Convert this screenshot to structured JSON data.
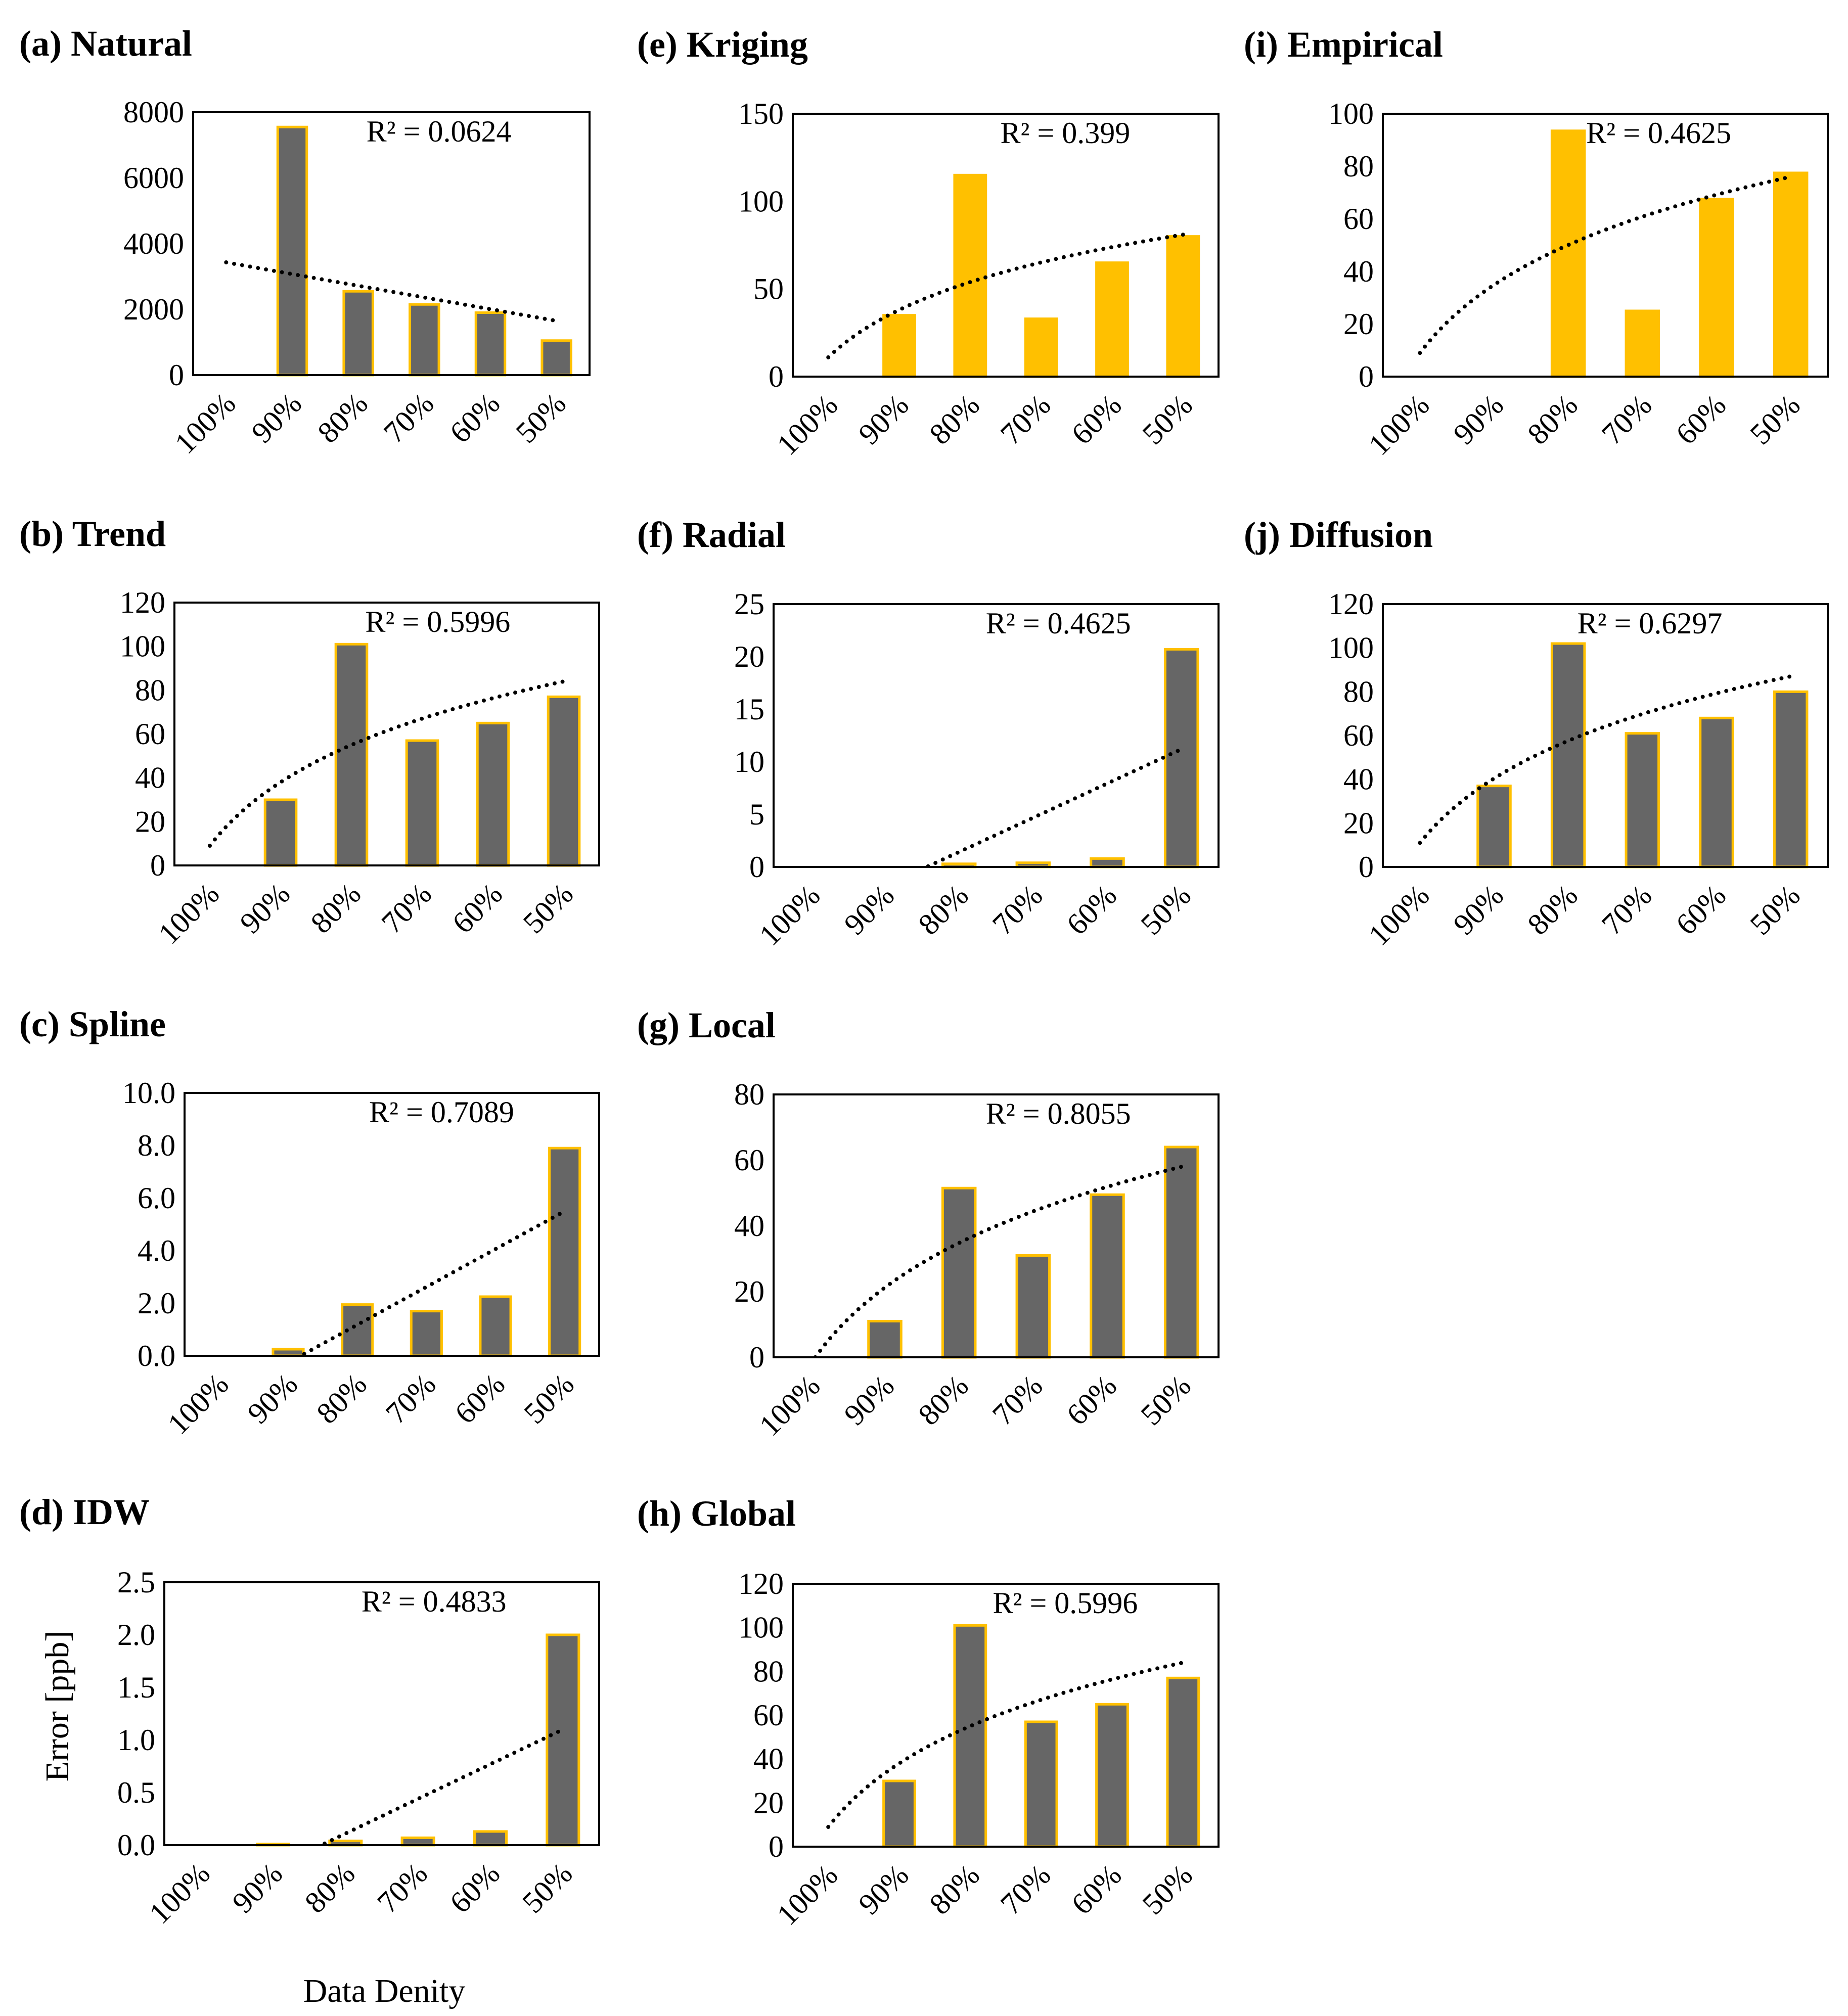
{
  "figure": {
    "ylabel": "Error [ppb]",
    "xlabel": "Data Denity"
  },
  "colors": {
    "gray_bar": "#666666",
    "gold_bar": "#FFC000",
    "bar_edge": "#FFC000",
    "trendline": "#000000",
    "frame": "#000000"
  },
  "chart_data": [
    {
      "id": "a",
      "title": "(a) Natural",
      "type": "bar",
      "categories": [
        "100%",
        "90%",
        "80%",
        "70%",
        "60%",
        "50%"
      ],
      "values": [
        0,
        7550,
        2550,
        2150,
        1900,
        1050
      ],
      "ylim": [
        0,
        8000
      ],
      "yticks": [
        0,
        2000,
        4000,
        6000,
        8000
      ],
      "ytick_labels": [
        "0",
        "2000",
        "4000",
        "6000",
        "8000"
      ],
      "bar_color": "gray",
      "trend": "linear",
      "trend_start": 3430,
      "trend_end": 1650,
      "r2_label": "R² = 0.0624"
    },
    {
      "id": "b",
      "title": "(b) Trend",
      "type": "bar",
      "categories": [
        "100%",
        "90%",
        "80%",
        "70%",
        "60%",
        "50%"
      ],
      "values": [
        0,
        30,
        101,
        57,
        65,
        77
      ],
      "ylim": [
        0,
        120
      ],
      "yticks": [
        0,
        20,
        40,
        60,
        80,
        100,
        120
      ],
      "ytick_labels": [
        "0",
        "20",
        "40",
        "60",
        "80",
        "100",
        "120"
      ],
      "bar_color": "gray",
      "trend": "log",
      "trend_start": 9,
      "trend_end": 84,
      "r2_label": "R² = 0.5996"
    },
    {
      "id": "c",
      "title": "(c) Spline",
      "type": "bar",
      "categories": [
        "100%",
        "90%",
        "80%",
        "70%",
        "60%",
        "50%"
      ],
      "values": [
        0,
        0.25,
        1.95,
        1.7,
        2.25,
        7.9
      ],
      "ylim": [
        0,
        10
      ],
      "yticks": [
        0,
        2,
        4,
        6,
        8,
        10
      ],
      "ytick_labels": [
        "0.0",
        "2.0",
        "4.0",
        "6.0",
        "8.0",
        "10.0"
      ],
      "bar_color": "gray",
      "trend": "linear",
      "trend_start": -1.7,
      "trend_end": 5.5,
      "r2_label": "R² = 0.7089"
    },
    {
      "id": "d",
      "title": "(d) IDW",
      "type": "bar",
      "categories": [
        "100%",
        "90%",
        "80%",
        "70%",
        "60%",
        "50%"
      ],
      "values": [
        0,
        0.01,
        0.04,
        0.07,
        0.13,
        2.0
      ],
      "ylim": [
        0,
        2.5
      ],
      "yticks": [
        0,
        0.5,
        1,
        1.5,
        2,
        2.5
      ],
      "ytick_labels": [
        "0.0",
        "0.5",
        "1.0",
        "1.5",
        "2.0",
        "2.5"
      ],
      "bar_color": "gray",
      "trend": "linear",
      "trend_start": -0.55,
      "trend_end": 1.1,
      "r2_label": "R² = 0.4833"
    },
    {
      "id": "e",
      "title": "(e) Kriging",
      "type": "bar",
      "categories": [
        "100%",
        "90%",
        "80%",
        "70%",
        "60%",
        "50%"
      ],
      "values": [
        0,
        35,
        115,
        33,
        65,
        80
      ],
      "ylim": [
        0,
        150
      ],
      "yticks": [
        0,
        50,
        100,
        150
      ],
      "ytick_labels": [
        "0",
        "50",
        "100",
        "150"
      ],
      "bar_color": "gold",
      "trend": "log",
      "trend_start": 11,
      "trend_end": 81,
      "r2_label": "R² = 0.399"
    },
    {
      "id": "f",
      "title": "(f) Radial",
      "type": "bar",
      "categories": [
        "100%",
        "90%",
        "80%",
        "70%",
        "60%",
        "50%"
      ],
      "values": [
        0,
        0,
        0.3,
        0.4,
        0.8,
        20.7
      ],
      "ylim": [
        0,
        25
      ],
      "yticks": [
        0,
        5,
        10,
        15,
        20,
        25
      ],
      "ytick_labels": [
        "0",
        "5",
        "10",
        "15",
        "20",
        "25"
      ],
      "bar_color": "gray",
      "trend": "linear",
      "trend_start": -5.1,
      "trend_end": 11.2,
      "r2_label": "R² = 0.4625"
    },
    {
      "id": "g",
      "title": "(g) Local",
      "type": "bar",
      "categories": [
        "100%",
        "90%",
        "80%",
        "70%",
        "60%",
        "50%"
      ],
      "values": [
        0,
        11,
        51.5,
        31,
        49.5,
        64
      ],
      "ylim": [
        0,
        80
      ],
      "yticks": [
        0,
        20,
        40,
        60,
        80
      ],
      "ytick_labels": [
        "0",
        "20",
        "40",
        "60",
        "80"
      ],
      "bar_color": "gray",
      "trend": "log",
      "trend_start": -2,
      "trend_end": 58,
      "r2_label": "R² = 0.8055"
    },
    {
      "id": "h",
      "title": "(h) Global",
      "type": "bar",
      "categories": [
        "100%",
        "90%",
        "80%",
        "70%",
        "60%",
        "50%"
      ],
      "values": [
        0,
        30,
        101,
        57,
        65,
        77
      ],
      "ylim": [
        0,
        120
      ],
      "yticks": [
        0,
        20,
        40,
        60,
        80,
        100,
        120
      ],
      "ytick_labels": [
        "0",
        "20",
        "40",
        "60",
        "80",
        "100",
        "120"
      ],
      "bar_color": "gray",
      "trend": "log",
      "trend_start": 9,
      "trend_end": 84,
      "r2_label": "R² = 0.5996"
    },
    {
      "id": "i",
      "title": "(i) Empirical",
      "type": "bar",
      "categories": [
        "100%",
        "90%",
        "80%",
        "70%",
        "60%",
        "50%"
      ],
      "values": [
        0,
        0,
        93.5,
        25,
        67.5,
        77.5
      ],
      "ylim": [
        0,
        100
      ],
      "yticks": [
        0,
        20,
        40,
        60,
        80,
        100
      ],
      "ytick_labels": [
        "0",
        "20",
        "40",
        "60",
        "80",
        "100"
      ],
      "bar_color": "gold",
      "trend": "log",
      "trend_start": 9,
      "trend_end": 76,
      "r2_label": "R² = 0.4625"
    },
    {
      "id": "j",
      "title": "(j) Diffusion",
      "type": "bar",
      "categories": [
        "100%",
        "90%",
        "80%",
        "70%",
        "60%",
        "50%"
      ],
      "values": [
        0,
        37,
        102,
        61,
        68,
        80
      ],
      "ylim": [
        0,
        120
      ],
      "yticks": [
        0,
        20,
        40,
        60,
        80,
        100,
        120
      ],
      "ytick_labels": [
        "0",
        "20",
        "40",
        "60",
        "80",
        "100",
        "120"
      ],
      "bar_color": "gray",
      "trend": "log",
      "trend_start": 11,
      "trend_end": 87,
      "r2_label": "R² = 0.6297"
    }
  ]
}
